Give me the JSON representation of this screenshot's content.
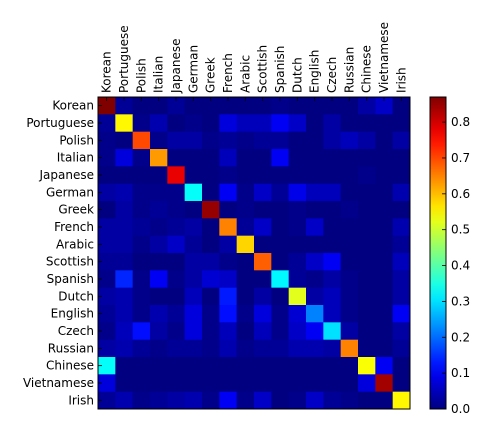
{
  "chart_data": {
    "type": "heatmap",
    "title": "",
    "xlabel": "",
    "ylabel": "",
    "categories": [
      "Korean",
      "Portuguese",
      "Polish",
      "Italian",
      "Japanese",
      "German",
      "Greek",
      "French",
      "Arabic",
      "Scottish",
      "Spanish",
      "Dutch",
      "English",
      "Czech",
      "Russian",
      "Chinese",
      "Vietnamese",
      "Irish"
    ],
    "x_tick_position": "top",
    "x_tick_rotation": 90,
    "colormap": "jet",
    "colorbar": {
      "range": [
        0.0,
        0.87
      ],
      "ticks": [
        "0.0",
        "0.1",
        "0.2",
        "0.3",
        "0.4",
        "0.5",
        "0.6",
        "0.7",
        "0.8"
      ]
    },
    "matrix": [
      [
        0.87,
        0.02,
        0.0,
        0.0,
        0.02,
        0.0,
        0.0,
        0.0,
        0.0,
        0.0,
        0.01,
        0.0,
        0.0,
        0.0,
        0.0,
        0.03,
        0.06,
        0.0
      ],
      [
        0.02,
        0.55,
        0.01,
        0.04,
        0.0,
        0.01,
        0.0,
        0.08,
        0.05,
        0.05,
        0.1,
        0.06,
        0.0,
        0.03,
        0.0,
        0.0,
        0.0,
        0.0
      ],
      [
        0.01,
        0.0,
        0.7,
        0.01,
        0.03,
        0.03,
        0.01,
        0.02,
        0.01,
        0.02,
        0.02,
        0.0,
        0.0,
        0.03,
        0.05,
        0.03,
        0.0,
        0.03
      ],
      [
        0.01,
        0.08,
        0.01,
        0.63,
        0.0,
        0.0,
        0.0,
        0.05,
        0.0,
        0.0,
        0.1,
        0.0,
        0.0,
        0.0,
        0.0,
        0.0,
        0.0,
        0.0
      ],
      [
        0.0,
        0.0,
        0.0,
        0.0,
        0.78,
        0.0,
        0.0,
        0.01,
        0.0,
        0.0,
        0.0,
        0.0,
        0.0,
        0.0,
        0.0,
        0.01,
        0.0,
        0.0
      ],
      [
        0.03,
        0.04,
        0.01,
        0.01,
        0.01,
        0.33,
        0.0,
        0.1,
        0.01,
        0.06,
        0.02,
        0.09,
        0.05,
        0.05,
        0.0,
        0.0,
        0.0,
        0.04
      ],
      [
        0.0,
        0.03,
        0.01,
        0.02,
        0.01,
        0.0,
        0.85,
        0.0,
        0.01,
        0.0,
        0.0,
        0.01,
        0.0,
        0.0,
        0.01,
        0.0,
        0.0,
        0.0
      ],
      [
        0.03,
        0.03,
        0.02,
        0.01,
        0.02,
        0.03,
        0.0,
        0.65,
        0.02,
        0.06,
        0.0,
        0.01,
        0.06,
        0.0,
        0.0,
        0.0,
        0.0,
        0.04
      ],
      [
        0.03,
        0.03,
        0.01,
        0.03,
        0.06,
        0.02,
        0.0,
        0.03,
        0.58,
        0.0,
        0.0,
        0.0,
        0.0,
        0.0,
        0.0,
        0.0,
        0.0,
        0.02
      ],
      [
        0.02,
        0.02,
        0.0,
        0.0,
        0.0,
        0.03,
        0.03,
        0.01,
        0.0,
        0.68,
        0.0,
        0.02,
        0.06,
        0.1,
        0.0,
        0.0,
        0.0,
        0.05
      ],
      [
        0.01,
        0.14,
        0.01,
        0.1,
        0.01,
        0.03,
        0.07,
        0.06,
        0.0,
        0.0,
        0.32,
        0.02,
        0.01,
        0.03,
        0.01,
        0.0,
        0.0,
        0.03
      ],
      [
        0.03,
        0.04,
        0.01,
        0.0,
        0.0,
        0.05,
        0.0,
        0.13,
        0.0,
        0.03,
        0.0,
        0.52,
        0.03,
        0.05,
        0.01,
        0.0,
        0.0,
        0.03
      ],
      [
        0.02,
        0.04,
        0.01,
        0.04,
        0.02,
        0.08,
        0.01,
        0.12,
        0.01,
        0.08,
        0.01,
        0.07,
        0.22,
        0.05,
        0.01,
        0.0,
        0.0,
        0.1
      ],
      [
        0.01,
        0.05,
        0.12,
        0.03,
        0.01,
        0.08,
        0.01,
        0.05,
        0.0,
        0.05,
        0.01,
        0.06,
        0.1,
        0.3,
        0.03,
        0.0,
        0.0,
        0.03
      ],
      [
        0.03,
        0.04,
        0.02,
        0.01,
        0.02,
        0.02,
        0.01,
        0.04,
        0.01,
        0.02,
        0.02,
        0.04,
        0.04,
        0.03,
        0.65,
        0.0,
        0.0,
        0.02
      ],
      [
        0.33,
        0.0,
        0.0,
        0.0,
        0.0,
        0.0,
        0.0,
        0.0,
        0.0,
        0.0,
        0.0,
        0.0,
        0.0,
        0.0,
        0.0,
        0.54,
        0.1,
        0.0
      ],
      [
        0.08,
        0.0,
        0.0,
        0.0,
        0.0,
        0.0,
        0.0,
        0.0,
        0.0,
        0.0,
        0.0,
        0.0,
        0.0,
        0.0,
        0.0,
        0.08,
        0.84,
        0.0
      ],
      [
        0.02,
        0.04,
        0.01,
        0.02,
        0.03,
        0.04,
        0.01,
        0.1,
        0.01,
        0.06,
        0.0,
        0.01,
        0.06,
        0.02,
        0.01,
        0.0,
        0.0,
        0.55
      ]
    ]
  }
}
